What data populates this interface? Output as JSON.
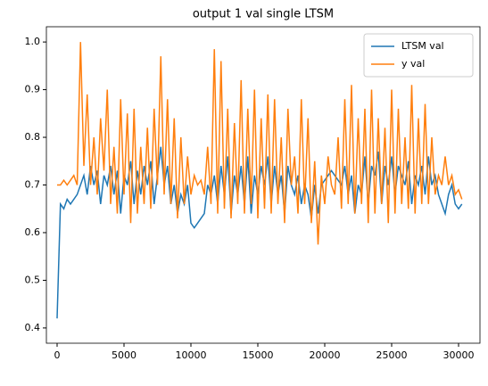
{
  "chart_data": {
    "type": "line",
    "title": "output 1 val single LTSM",
    "x": [
      0,
      250,
      500,
      750,
      1000,
      1250,
      1500,
      1750,
      2000,
      2250,
      2500,
      2750,
      3000,
      3250,
      3500,
      3750,
      4000,
      4250,
      4500,
      4750,
      5000,
      5250,
      5500,
      5750,
      6000,
      6250,
      6500,
      6750,
      7000,
      7250,
      7500,
      7750,
      8000,
      8250,
      8500,
      8750,
      9000,
      9250,
      9500,
      9750,
      10000,
      10250,
      10500,
      10750,
      11000,
      11250,
      11500,
      11750,
      12000,
      12250,
      12500,
      12750,
      13000,
      13250,
      13500,
      13750,
      14000,
      14250,
      14500,
      14750,
      15000,
      15250,
      15500,
      15750,
      16000,
      16250,
      16500,
      16750,
      17000,
      17250,
      17500,
      17750,
      18000,
      18250,
      18500,
      18750,
      19000,
      19250,
      19500,
      19750,
      20000,
      20250,
      20500,
      20750,
      21000,
      21250,
      21500,
      21750,
      22000,
      22250,
      22500,
      22750,
      23000,
      23250,
      23500,
      23750,
      24000,
      24250,
      24500,
      24750,
      25000,
      25250,
      25500,
      25750,
      26000,
      26250,
      26500,
      26750,
      27000,
      27250,
      27500,
      27750,
      28000,
      28250,
      28500,
      28750,
      29000,
      29250,
      29500,
      29750,
      30000,
      30250
    ],
    "series": [
      {
        "name": "LTSM val",
        "color": "#1f77b4",
        "values": [
          0.42,
          0.66,
          0.65,
          0.67,
          0.66,
          0.67,
          0.68,
          0.7,
          0.72,
          0.68,
          0.74,
          0.7,
          0.73,
          0.66,
          0.72,
          0.7,
          0.74,
          0.68,
          0.73,
          0.64,
          0.72,
          0.7,
          0.75,
          0.66,
          0.73,
          0.68,
          0.74,
          0.7,
          0.75,
          0.66,
          0.72,
          0.78,
          0.7,
          0.74,
          0.66,
          0.7,
          0.64,
          0.68,
          0.66,
          0.7,
          0.62,
          0.61,
          0.62,
          0.63,
          0.64,
          0.7,
          0.68,
          0.72,
          0.66,
          0.74,
          0.68,
          0.76,
          0.64,
          0.72,
          0.68,
          0.74,
          0.66,
          0.76,
          0.64,
          0.72,
          0.68,
          0.74,
          0.7,
          0.76,
          0.66,
          0.74,
          0.68,
          0.72,
          0.64,
          0.74,
          0.7,
          0.68,
          0.72,
          0.66,
          0.7,
          0.68,
          0.63,
          0.7,
          0.64,
          0.7,
          0.71,
          0.72,
          0.73,
          0.72,
          0.71,
          0.7,
          0.74,
          0.68,
          0.72,
          0.64,
          0.7,
          0.68,
          0.76,
          0.66,
          0.74,
          0.72,
          0.77,
          0.66,
          0.74,
          0.7,
          0.76,
          0.68,
          0.74,
          0.72,
          0.7,
          0.75,
          0.66,
          0.72,
          0.7,
          0.74,
          0.68,
          0.76,
          0.7,
          0.72,
          0.68,
          0.66,
          0.64,
          0.68,
          0.7,
          0.66,
          0.65,
          0.66
        ]
      },
      {
        "name": "y val",
        "color": "#ff7f0e",
        "values": [
          0.7,
          0.7,
          0.71,
          0.7,
          0.71,
          0.72,
          0.7,
          1.0,
          0.74,
          0.89,
          0.7,
          0.8,
          0.68,
          0.84,
          0.73,
          0.9,
          0.66,
          0.78,
          0.64,
          0.88,
          0.68,
          0.85,
          0.62,
          0.86,
          0.64,
          0.78,
          0.66,
          0.82,
          0.65,
          0.86,
          0.7,
          0.97,
          0.68,
          0.88,
          0.66,
          0.84,
          0.63,
          0.8,
          0.66,
          0.76,
          0.68,
          0.72,
          0.7,
          0.71,
          0.68,
          0.78,
          0.66,
          0.985,
          0.64,
          0.96,
          0.65,
          0.86,
          0.63,
          0.83,
          0.66,
          0.92,
          0.64,
          0.86,
          0.66,
          0.9,
          0.63,
          0.84,
          0.65,
          0.89,
          0.64,
          0.88,
          0.66,
          0.8,
          0.62,
          0.86,
          0.7,
          0.76,
          0.64,
          0.88,
          0.66,
          0.84,
          0.62,
          0.75,
          0.575,
          0.72,
          0.66,
          0.76,
          0.7,
          0.68,
          0.8,
          0.65,
          0.88,
          0.66,
          0.91,
          0.64,
          0.84,
          0.66,
          0.86,
          0.62,
          0.9,
          0.64,
          0.84,
          0.66,
          0.82,
          0.62,
          0.9,
          0.64,
          0.86,
          0.66,
          0.8,
          0.65,
          0.91,
          0.64,
          0.84,
          0.66,
          0.87,
          0.66,
          0.8,
          0.68,
          0.72,
          0.7,
          0.76,
          0.7,
          0.72,
          0.68,
          0.69,
          0.67
        ]
      }
    ],
    "xlim": [
      -800,
      31600
    ],
    "xticks": [
      0,
      5000,
      10000,
      15000,
      20000,
      25000,
      30000
    ],
    "ylim": [
      0.368,
      1.032
    ],
    "yticks": [
      0.4,
      0.5,
      0.6,
      0.7,
      0.8,
      0.9,
      {
        "value": 1,
        "label": "1.0"
      }
    ],
    "legend": "upper right"
  }
}
